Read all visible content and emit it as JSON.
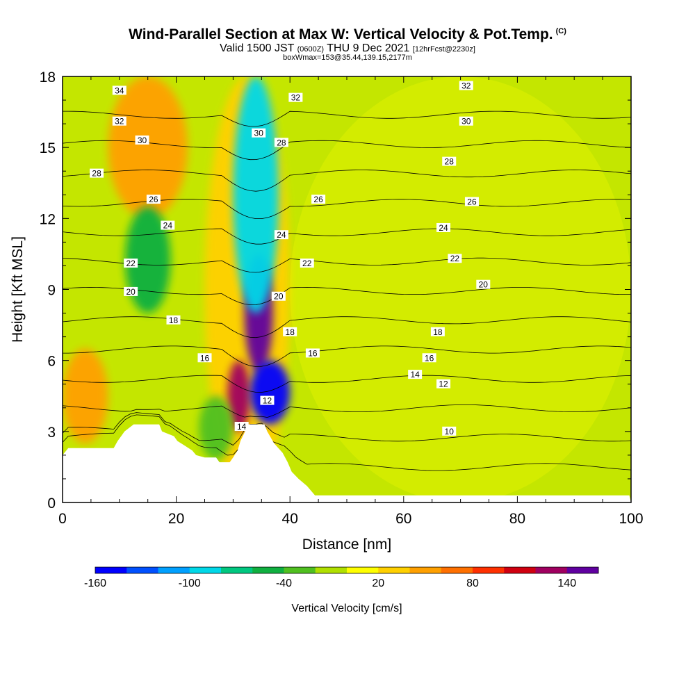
{
  "header": {
    "title": "Wind-Parallel Section at Max W: Vertical Velocity & Pot.Temp.",
    "title_mark": "(C)",
    "valid_prefix": "Valid 1500 JST",
    "valid_utc": "(0600Z)",
    "valid_date": "THU 9 Dec 2021",
    "forecast": "[12hrFcst@2230z]",
    "box_info": "boxWmax=153@35.44,139.15,2177m"
  },
  "chart_data": {
    "type": "heatmap",
    "xlabel": "Distance [nm]",
    "ylabel": "Height [Kft MSL]",
    "xlim": [
      0,
      100
    ],
    "ylim": [
      0,
      18
    ],
    "x_ticks": [
      0,
      20,
      40,
      60,
      80,
      100
    ],
    "y_ticks": [
      0,
      3,
      6,
      9,
      12,
      15,
      18
    ],
    "colorbar": {
      "label": "Vertical Velocity [cm/s]",
      "tick_labels": [
        "-160",
        "-100",
        "-40",
        "20",
        "80",
        "140"
      ],
      "tick_values": [
        -160,
        -100,
        -40,
        20,
        80,
        140
      ],
      "range": [
        -160,
        160
      ],
      "colors": [
        "#0000ff",
        "#0050ff",
        "#00a0ff",
        "#00d8e8",
        "#00c880",
        "#10b040",
        "#50c020",
        "#b0e000",
        "#ffff00",
        "#ffd000",
        "#ffa000",
        "#ff7000",
        "#ff3000",
        "#d00010",
        "#a00060",
        "#6000a0"
      ]
    },
    "background_color": "#c4e600",
    "terrain": [
      [
        0,
        2.0
      ],
      [
        1,
        2.3
      ],
      [
        9,
        2.3
      ],
      [
        9.7,
        2.6
      ],
      [
        10.3,
        2.8
      ],
      [
        10.9,
        3.0
      ],
      [
        12.5,
        3.3
      ],
      [
        17,
        3.3
      ],
      [
        17.5,
        3.0
      ],
      [
        19.6,
        2.8
      ],
      [
        20.2,
        2.6
      ],
      [
        21.5,
        2.4
      ],
      [
        22.8,
        2.2
      ],
      [
        23.5,
        2.0
      ],
      [
        25,
        1.9
      ],
      [
        27,
        1.9
      ],
      [
        27.6,
        1.7
      ],
      [
        29.4,
        1.7
      ],
      [
        30,
        1.9
      ],
      [
        30.8,
        2.2
      ],
      [
        31.3,
        2.6
      ],
      [
        32.1,
        3.0
      ],
      [
        32.7,
        3.3
      ],
      [
        35.5,
        3.3
      ],
      [
        36,
        3.0
      ],
      [
        37.2,
        2.5
      ],
      [
        38.7,
        2.1
      ],
      [
        39.6,
        1.7
      ],
      [
        40.3,
        1.3
      ],
      [
        41.5,
        1.0
      ],
      [
        43,
        0.7
      ],
      [
        44.4,
        0.3
      ],
      [
        99.7,
        0.3
      ],
      [
        100,
        0
      ]
    ],
    "velocity_features": [
      {
        "kind": "updraft",
        "x": [
          0,
          8
        ],
        "y": [
          2.5,
          6.5
        ],
        "w": 45
      },
      {
        "kind": "updraft",
        "x": [
          8,
          22
        ],
        "y": [
          12,
          18
        ],
        "w": 50
      },
      {
        "kind": "updraft",
        "x": [
          25,
          40
        ],
        "y": [
          0,
          18
        ],
        "w": 30
      },
      {
        "kind": "updraft",
        "x": [
          29,
          33
        ],
        "y": [
          3.0,
          6.0
        ],
        "w": 120
      },
      {
        "kind": "updraft",
        "x": [
          32,
          37
        ],
        "y": [
          5.5,
          10.5
        ],
        "w": 150
      },
      {
        "kind": "downdraft",
        "x": [
          11,
          19
        ],
        "y": [
          8,
          12.5
        ],
        "w": -45
      },
      {
        "kind": "downdraft",
        "x": [
          24,
          30
        ],
        "y": [
          1.8,
          4.5
        ],
        "w": -40
      },
      {
        "kind": "downdraft",
        "x": [
          30,
          38
        ],
        "y": [
          8,
          18
        ],
        "w": -90
      },
      {
        "kind": "downdraft",
        "x": [
          33,
          40
        ],
        "y": [
          3.3,
          6.0
        ],
        "w": -150
      },
      {
        "kind": "updraft",
        "x": [
          40,
          100
        ],
        "y": [
          0,
          18
        ],
        "w": 15
      }
    ],
    "theta_contours": [
      {
        "label": "10",
        "value": 10
      },
      {
        "label": "12",
        "value": 12
      },
      {
        "label": "14",
        "value": 14
      },
      {
        "label": "16",
        "value": 16
      },
      {
        "label": "18",
        "value": 18
      },
      {
        "label": "20",
        "value": 20
      },
      {
        "label": "22",
        "value": 22
      },
      {
        "label": "24",
        "value": 24
      },
      {
        "label": "26",
        "value": 26
      },
      {
        "label": "28",
        "value": 28
      },
      {
        "label": "30",
        "value": 30
      },
      {
        "label": "32",
        "value": 32
      },
      {
        "label": "34",
        "value": 34
      }
    ],
    "contour_labels": [
      {
        "label": "34",
        "x": 10,
        "y": 17.4
      },
      {
        "label": "32",
        "x": 10,
        "y": 16.1
      },
      {
        "label": "30",
        "x": 14,
        "y": 15.3
      },
      {
        "label": "28",
        "x": 6,
        "y": 13.9
      },
      {
        "label": "26",
        "x": 16,
        "y": 12.8
      },
      {
        "label": "24",
        "x": 18.5,
        "y": 11.7
      },
      {
        "label": "22",
        "x": 12,
        "y": 10.1
      },
      {
        "label": "20",
        "x": 12,
        "y": 8.9
      },
      {
        "label": "18",
        "x": 19.5,
        "y": 7.7
      },
      {
        "label": "16",
        "x": 25,
        "y": 6.1
      },
      {
        "label": "14",
        "x": 31.5,
        "y": 3.2
      },
      {
        "label": "12",
        "x": 36,
        "y": 4.3
      },
      {
        "label": "16",
        "x": 44,
        "y": 6.3
      },
      {
        "label": "18",
        "x": 40,
        "y": 7.2
      },
      {
        "label": "20",
        "x": 38,
        "y": 8.7
      },
      {
        "label": "24",
        "x": 38.5,
        "y": 11.3
      },
      {
        "label": "22",
        "x": 43,
        "y": 10.1
      },
      {
        "label": "26",
        "x": 45,
        "y": 12.8
      },
      {
        "label": "28",
        "x": 38.5,
        "y": 15.2
      },
      {
        "label": "30",
        "x": 34.5,
        "y": 15.6
      },
      {
        "label": "32",
        "x": 41,
        "y": 17.1
      },
      {
        "label": "32",
        "x": 71,
        "y": 17.6
      },
      {
        "label": "30",
        "x": 71,
        "y": 16.1
      },
      {
        "label": "28",
        "x": 68,
        "y": 14.4
      },
      {
        "label": "26",
        "x": 72,
        "y": 12.7
      },
      {
        "label": "24",
        "x": 67,
        "y": 11.6
      },
      {
        "label": "22",
        "x": 69,
        "y": 10.3
      },
      {
        "label": "20",
        "x": 74,
        "y": 9.2
      },
      {
        "label": "18",
        "x": 66,
        "y": 7.2
      },
      {
        "label": "16",
        "x": 64.5,
        "y": 6.1
      },
      {
        "label": "14",
        "x": 62,
        "y": 5.4
      },
      {
        "label": "12",
        "x": 67,
        "y": 5.0
      },
      {
        "label": "10",
        "x": 68,
        "y": 3.0
      }
    ]
  }
}
